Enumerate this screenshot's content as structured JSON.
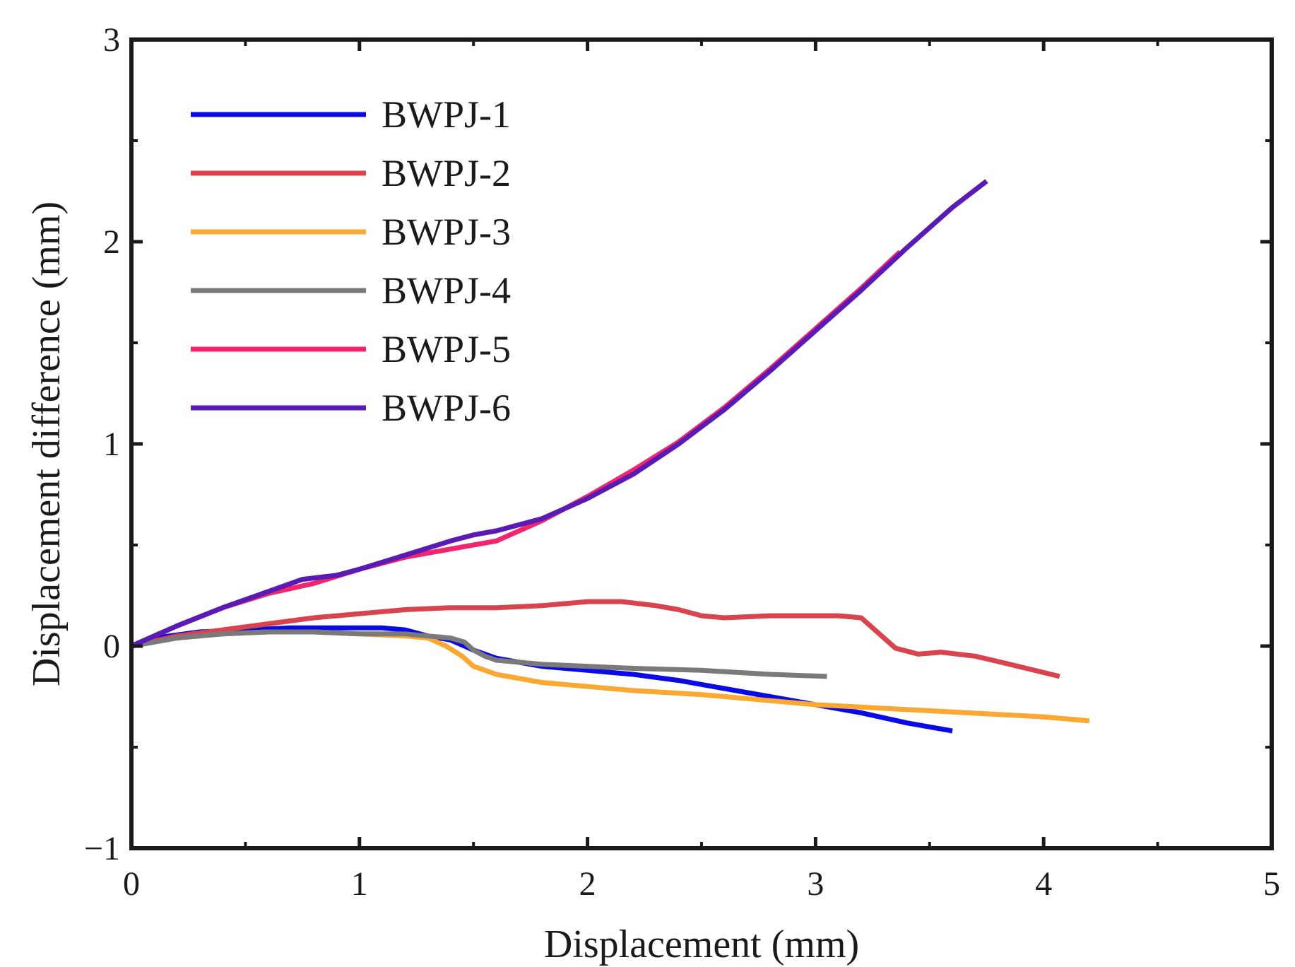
{
  "chart_data": {
    "type": "line",
    "title": "",
    "xlabel": "Displacement (mm)",
    "ylabel": "Displacement difference (mm)",
    "xlim": [
      0,
      5
    ],
    "ylim": [
      -1,
      3
    ],
    "xticks": [
      0,
      1,
      2,
      3,
      4,
      5
    ],
    "xtick_labels": [
      "0",
      "1",
      "2",
      "3",
      "4",
      "5"
    ],
    "yticks": [
      -1,
      0,
      1,
      2,
      3
    ],
    "ytick_labels": [
      "−1",
      "0",
      "1",
      "2",
      "3"
    ],
    "grid": false,
    "legend_position": "top-left",
    "series": [
      {
        "name": "BWPJ-1",
        "color": "#0a0ae6",
        "x": [
          0,
          0.1,
          0.3,
          0.5,
          0.7,
          0.9,
          1.1,
          1.2,
          1.3,
          1.4,
          1.5,
          1.6,
          1.8,
          2.0,
          2.2,
          2.4,
          2.6,
          2.8,
          3.0,
          3.2,
          3.4,
          3.6
        ],
        "y": [
          0,
          0.04,
          0.07,
          0.08,
          0.09,
          0.09,
          0.09,
          0.08,
          0.05,
          0.03,
          -0.02,
          -0.06,
          -0.1,
          -0.12,
          -0.14,
          -0.17,
          -0.21,
          -0.25,
          -0.29,
          -0.33,
          -0.38,
          -0.42
        ]
      },
      {
        "name": "BWPJ-2",
        "color": "#d9434e",
        "x": [
          0,
          0.2,
          0.4,
          0.6,
          0.8,
          1.0,
          1.2,
          1.4,
          1.6,
          1.8,
          2.0,
          2.15,
          2.3,
          2.4,
          2.5,
          2.6,
          2.8,
          3.0,
          3.1,
          3.2,
          3.27,
          3.35,
          3.45,
          3.55,
          3.7,
          3.85,
          4.07
        ],
        "y": [
          0,
          0.05,
          0.08,
          0.11,
          0.14,
          0.16,
          0.18,
          0.19,
          0.19,
          0.2,
          0.22,
          0.22,
          0.2,
          0.18,
          0.15,
          0.14,
          0.15,
          0.15,
          0.15,
          0.14,
          0.07,
          -0.01,
          -0.04,
          -0.03,
          -0.05,
          -0.09,
          -0.15
        ]
      },
      {
        "name": "BWPJ-3",
        "color": "#faa832",
        "x": [
          0,
          0.2,
          0.4,
          0.6,
          0.8,
          1.0,
          1.2,
          1.3,
          1.38,
          1.45,
          1.5,
          1.6,
          1.8,
          2.0,
          2.2,
          2.5,
          3.0,
          3.5,
          4.0,
          4.2
        ],
        "y": [
          0,
          0.04,
          0.06,
          0.07,
          0.07,
          0.06,
          0.05,
          0.04,
          0.0,
          -0.05,
          -0.1,
          -0.14,
          -0.18,
          -0.2,
          -0.22,
          -0.24,
          -0.29,
          -0.32,
          -0.35,
          -0.37
        ]
      },
      {
        "name": "BWPJ-4",
        "color": "#7a7a7a",
        "x": [
          0,
          0.2,
          0.4,
          0.6,
          0.8,
          1.0,
          1.2,
          1.3,
          1.4,
          1.46,
          1.5,
          1.55,
          1.6,
          1.8,
          2.0,
          2.2,
          2.5,
          2.8,
          3.05
        ],
        "y": [
          0,
          0.04,
          0.06,
          0.07,
          0.07,
          0.06,
          0.06,
          0.05,
          0.04,
          0.02,
          -0.02,
          -0.05,
          -0.07,
          -0.09,
          -0.1,
          -0.11,
          -0.12,
          -0.14,
          -0.15
        ]
      },
      {
        "name": "BWPJ-5",
        "color": "#f5246e",
        "x": [
          0,
          0.2,
          0.4,
          0.6,
          0.8,
          1.0,
          1.2,
          1.4,
          1.6,
          1.8,
          2.0,
          2.2,
          2.4,
          2.6,
          2.8,
          3.0,
          3.2,
          3.37
        ],
        "y": [
          0,
          0.1,
          0.19,
          0.26,
          0.31,
          0.38,
          0.44,
          0.48,
          0.52,
          0.62,
          0.74,
          0.87,
          1.01,
          1.18,
          1.37,
          1.57,
          1.77,
          1.95
        ]
      },
      {
        "name": "BWPJ-6",
        "color": "#5a1bb4",
        "x": [
          0,
          0.2,
          0.4,
          0.6,
          0.75,
          0.9,
          1.0,
          1.2,
          1.4,
          1.5,
          1.6,
          1.7,
          1.8,
          2.0,
          2.2,
          2.4,
          2.6,
          2.8,
          3.0,
          3.2,
          3.4,
          3.6,
          3.75
        ],
        "y": [
          0,
          0.1,
          0.19,
          0.27,
          0.33,
          0.35,
          0.38,
          0.45,
          0.52,
          0.55,
          0.57,
          0.6,
          0.63,
          0.73,
          0.85,
          1.0,
          1.17,
          1.36,
          1.56,
          1.76,
          1.97,
          2.17,
          2.3
        ]
      }
    ]
  }
}
